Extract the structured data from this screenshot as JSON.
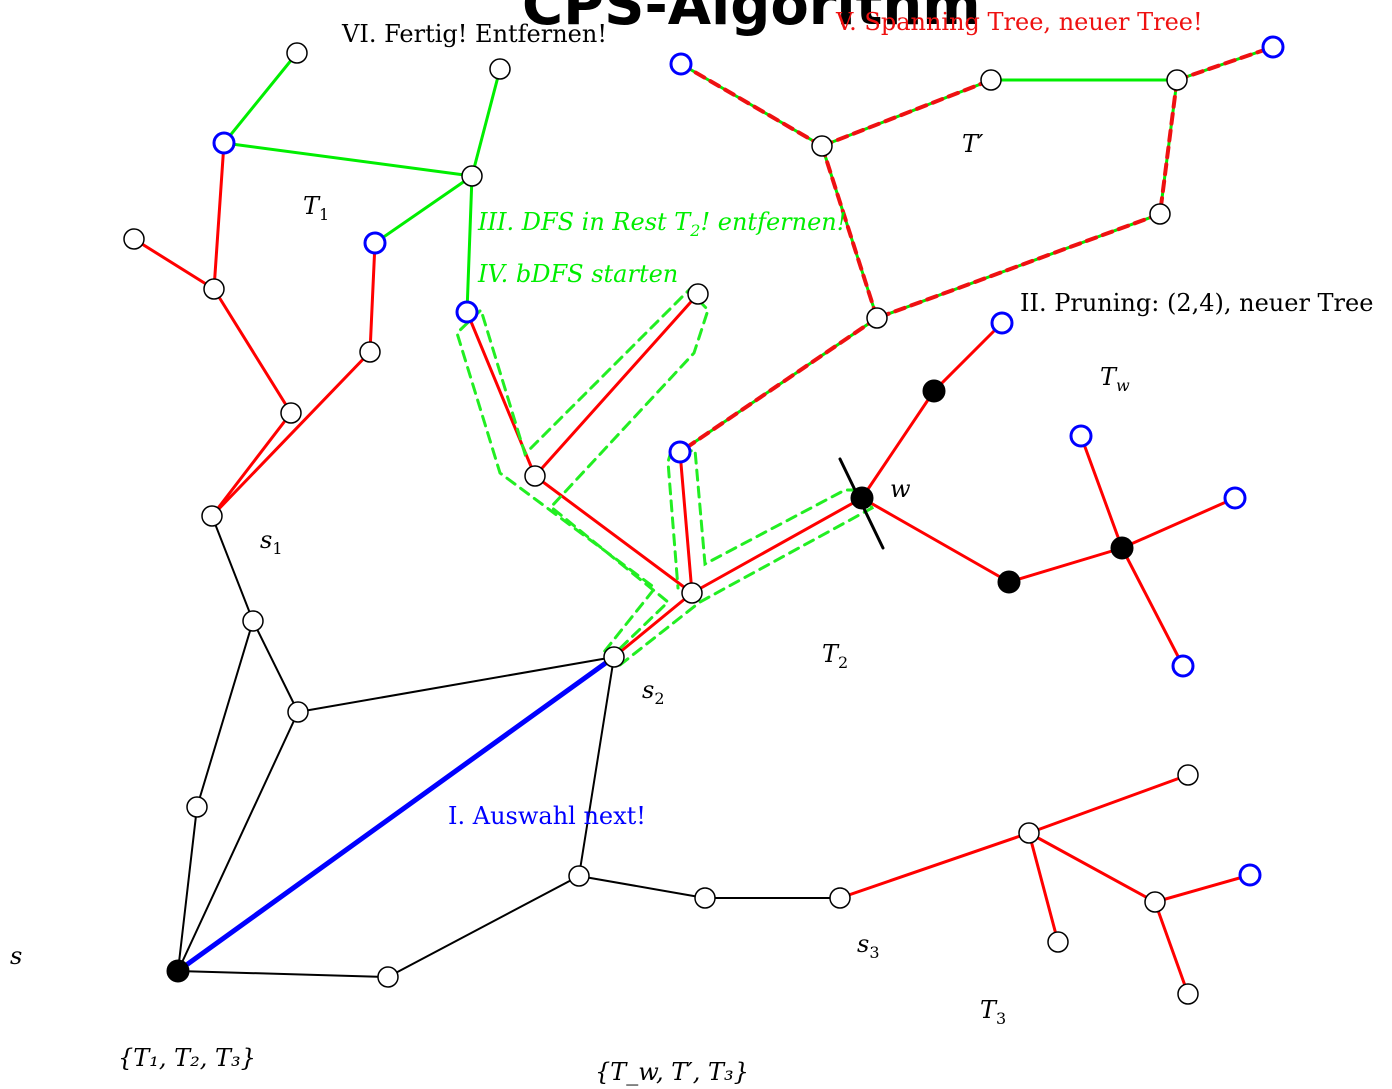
{
  "title": "CPS-Algorithm",
  "colors": {
    "black": "#000000",
    "red": "#ff0000",
    "green": "#00ee00",
    "blue": "#0000ff",
    "red_label": "#ee1111"
  },
  "step_labels": {
    "step1": "I. Auswahl next!",
    "step2": "II. Pruning: (2,4), neuer Tree",
    "step3": "III. DFS in Rest T",
    "step3_sub": "2",
    "step3_tail": "! entfernen!",
    "step4": "IV. bDFS starten",
    "step5": "V. Spanning Tree, neuer Tree!",
    "step6": "VI. Fertig! Entfernen!"
  },
  "node_labels": {
    "s": "s",
    "s1": "s",
    "s1_sub": "1",
    "s2": "s",
    "s2_sub": "2",
    "s3": "s",
    "s3_sub": "3",
    "w": "w"
  },
  "tree_labels": {
    "T1": "T",
    "T1_sub": "1",
    "T2": "T",
    "T2_sub": "2",
    "T3": "T",
    "T3_sub": "3",
    "Tw": "T",
    "Tw_sub": "w",
    "Tprime": "T′"
  },
  "set_labels": {
    "set1": "{T₁, T₂, T₃}",
    "set2": "{T_w, T′, T₃}"
  }
}
